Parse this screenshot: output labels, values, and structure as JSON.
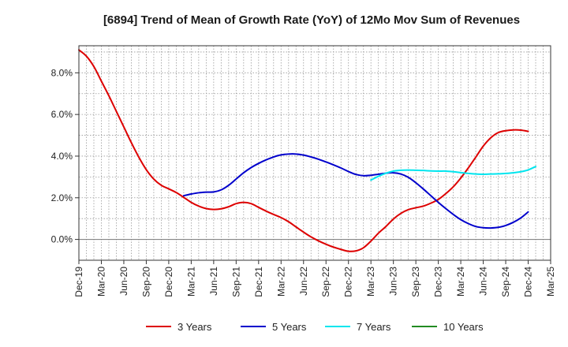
{
  "chart_data": {
    "type": "line",
    "title": "[6894]  Trend of Mean of Growth Rate (YoY) of 12Mo Mov Sum of Revenues",
    "xlabel": "",
    "ylabel": "",
    "ylim": [
      -1.0,
      9.3
    ],
    "x_ticks": [
      "Dec-19",
      "Mar-20",
      "Jun-20",
      "Sep-20",
      "Dec-20",
      "Mar-21",
      "Jun-21",
      "Sep-21",
      "Dec-21",
      "Mar-22",
      "Jun-22",
      "Sep-22",
      "Dec-22",
      "Mar-23",
      "Jun-23",
      "Sep-23",
      "Dec-23",
      "Mar-24",
      "Jun-24",
      "Sep-24",
      "Dec-24",
      "Mar-25"
    ],
    "y_ticks": [
      {
        "value": 0,
        "label": "0.0%"
      },
      {
        "value": 2,
        "label": "2.0%"
      },
      {
        "value": 4,
        "label": "4.0%"
      },
      {
        "value": 6,
        "label": "6.0%"
      },
      {
        "value": 8,
        "label": "8.0%"
      }
    ],
    "series": [
      {
        "name": "3 Years",
        "color": "#dd0000",
        "start_index": 0,
        "values": [
          9.1,
          8.8,
          8.3,
          7.6,
          6.9,
          6.15,
          5.4,
          4.65,
          3.95,
          3.35,
          2.9,
          2.6,
          2.43,
          2.25,
          2.02,
          1.78,
          1.6,
          1.48,
          1.44,
          1.47,
          1.57,
          1.72,
          1.78,
          1.72,
          1.54,
          1.36,
          1.2,
          1.05,
          0.85,
          0.6,
          0.35,
          0.12,
          -0.07,
          -0.23,
          -0.37,
          -0.48,
          -0.57,
          -0.55,
          -0.4,
          -0.08,
          0.3,
          0.62,
          0.98,
          1.25,
          1.43,
          1.52,
          1.6,
          1.74,
          1.92,
          2.2,
          2.53,
          2.95,
          3.43,
          3.95,
          4.48,
          4.88,
          5.13,
          5.22,
          5.26,
          5.25,
          5.19
        ]
      },
      {
        "name": "5 Years",
        "color": "#0000cc",
        "start_index": 14,
        "values": [
          2.1,
          2.18,
          2.24,
          2.27,
          2.28,
          2.38,
          2.6,
          2.9,
          3.2,
          3.45,
          3.65,
          3.82,
          3.96,
          4.06,
          4.1,
          4.1,
          4.05,
          3.96,
          3.85,
          3.72,
          3.58,
          3.43,
          3.26,
          3.12,
          3.06,
          3.08,
          3.13,
          3.18,
          3.2,
          3.14,
          2.98,
          2.72,
          2.42,
          2.1,
          1.78,
          1.48,
          1.2,
          0.95,
          0.76,
          0.62,
          0.56,
          0.55,
          0.58,
          0.67,
          0.82,
          1.03,
          1.32
        ]
      },
      {
        "name": "7 Years",
        "color": "#00e5ee",
        "start_index": 39,
        "values": [
          2.85,
          3.03,
          3.18,
          3.28,
          3.32,
          3.33,
          3.32,
          3.31,
          3.29,
          3.28,
          3.28,
          3.25,
          3.21,
          3.17,
          3.14,
          3.13,
          3.14,
          3.15,
          3.17,
          3.2,
          3.25,
          3.34,
          3.5
        ]
      },
      {
        "name": "10 Years",
        "color": "#228b22",
        "start_index": 0,
        "values": []
      }
    ],
    "legend_position": "bottom",
    "grid": true
  }
}
